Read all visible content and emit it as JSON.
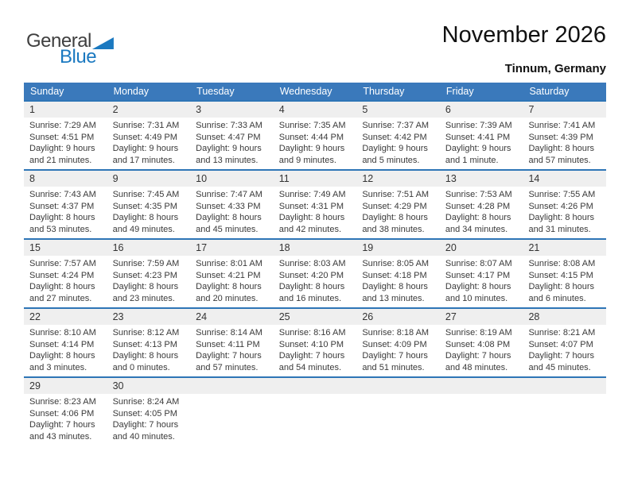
{
  "logo": {
    "part1": "General",
    "part2": "Blue"
  },
  "header": {
    "title": "November 2026",
    "subtitle": "Tinnum, Germany"
  },
  "colors": {
    "header_bg": "#3A79BB",
    "week_border": "#2E75B6",
    "day_strip_bg": "#EFEFEF",
    "header_text": "#FFFFFF",
    "logo_blue": "#1B79C0",
    "body_text": "#3A3A3A",
    "title_text": "#111111"
  },
  "calendar": {
    "weekday_headers": [
      "Sunday",
      "Monday",
      "Tuesday",
      "Wednesday",
      "Thursday",
      "Friday",
      "Saturday"
    ],
    "weeks": [
      [
        {
          "day": "1",
          "sunrise": "Sunrise: 7:29 AM",
          "sunset": "Sunset: 4:51 PM",
          "daylight": [
            "Daylight: 9 hours",
            "and 21 minutes."
          ]
        },
        {
          "day": "2",
          "sunrise": "Sunrise: 7:31 AM",
          "sunset": "Sunset: 4:49 PM",
          "daylight": [
            "Daylight: 9 hours",
            "and 17 minutes."
          ]
        },
        {
          "day": "3",
          "sunrise": "Sunrise: 7:33 AM",
          "sunset": "Sunset: 4:47 PM",
          "daylight": [
            "Daylight: 9 hours",
            "and 13 minutes."
          ]
        },
        {
          "day": "4",
          "sunrise": "Sunrise: 7:35 AM",
          "sunset": "Sunset: 4:44 PM",
          "daylight": [
            "Daylight: 9 hours",
            "and 9 minutes."
          ]
        },
        {
          "day": "5",
          "sunrise": "Sunrise: 7:37 AM",
          "sunset": "Sunset: 4:42 PM",
          "daylight": [
            "Daylight: 9 hours",
            "and 5 minutes."
          ]
        },
        {
          "day": "6",
          "sunrise": "Sunrise: 7:39 AM",
          "sunset": "Sunset: 4:41 PM",
          "daylight": [
            "Daylight: 9 hours",
            "and 1 minute."
          ]
        },
        {
          "day": "7",
          "sunrise": "Sunrise: 7:41 AM",
          "sunset": "Sunset: 4:39 PM",
          "daylight": [
            "Daylight: 8 hours",
            "and 57 minutes."
          ]
        }
      ],
      [
        {
          "day": "8",
          "sunrise": "Sunrise: 7:43 AM",
          "sunset": "Sunset: 4:37 PM",
          "daylight": [
            "Daylight: 8 hours",
            "and 53 minutes."
          ]
        },
        {
          "day": "9",
          "sunrise": "Sunrise: 7:45 AM",
          "sunset": "Sunset: 4:35 PM",
          "daylight": [
            "Daylight: 8 hours",
            "and 49 minutes."
          ]
        },
        {
          "day": "10",
          "sunrise": "Sunrise: 7:47 AM",
          "sunset": "Sunset: 4:33 PM",
          "daylight": [
            "Daylight: 8 hours",
            "and 45 minutes."
          ]
        },
        {
          "day": "11",
          "sunrise": "Sunrise: 7:49 AM",
          "sunset": "Sunset: 4:31 PM",
          "daylight": [
            "Daylight: 8 hours",
            "and 42 minutes."
          ]
        },
        {
          "day": "12",
          "sunrise": "Sunrise: 7:51 AM",
          "sunset": "Sunset: 4:29 PM",
          "daylight": [
            "Daylight: 8 hours",
            "and 38 minutes."
          ]
        },
        {
          "day": "13",
          "sunrise": "Sunrise: 7:53 AM",
          "sunset": "Sunset: 4:28 PM",
          "daylight": [
            "Daylight: 8 hours",
            "and 34 minutes."
          ]
        },
        {
          "day": "14",
          "sunrise": "Sunrise: 7:55 AM",
          "sunset": "Sunset: 4:26 PM",
          "daylight": [
            "Daylight: 8 hours",
            "and 31 minutes."
          ]
        }
      ],
      [
        {
          "day": "15",
          "sunrise": "Sunrise: 7:57 AM",
          "sunset": "Sunset: 4:24 PM",
          "daylight": [
            "Daylight: 8 hours",
            "and 27 minutes."
          ]
        },
        {
          "day": "16",
          "sunrise": "Sunrise: 7:59 AM",
          "sunset": "Sunset: 4:23 PM",
          "daylight": [
            "Daylight: 8 hours",
            "and 23 minutes."
          ]
        },
        {
          "day": "17",
          "sunrise": "Sunrise: 8:01 AM",
          "sunset": "Sunset: 4:21 PM",
          "daylight": [
            "Daylight: 8 hours",
            "and 20 minutes."
          ]
        },
        {
          "day": "18",
          "sunrise": "Sunrise: 8:03 AM",
          "sunset": "Sunset: 4:20 PM",
          "daylight": [
            "Daylight: 8 hours",
            "and 16 minutes."
          ]
        },
        {
          "day": "19",
          "sunrise": "Sunrise: 8:05 AM",
          "sunset": "Sunset: 4:18 PM",
          "daylight": [
            "Daylight: 8 hours",
            "and 13 minutes."
          ]
        },
        {
          "day": "20",
          "sunrise": "Sunrise: 8:07 AM",
          "sunset": "Sunset: 4:17 PM",
          "daylight": [
            "Daylight: 8 hours",
            "and 10 minutes."
          ]
        },
        {
          "day": "21",
          "sunrise": "Sunrise: 8:08 AM",
          "sunset": "Sunset: 4:15 PM",
          "daylight": [
            "Daylight: 8 hours",
            "and 6 minutes."
          ]
        }
      ],
      [
        {
          "day": "22",
          "sunrise": "Sunrise: 8:10 AM",
          "sunset": "Sunset: 4:14 PM",
          "daylight": [
            "Daylight: 8 hours",
            "and 3 minutes."
          ]
        },
        {
          "day": "23",
          "sunrise": "Sunrise: 8:12 AM",
          "sunset": "Sunset: 4:13 PM",
          "daylight": [
            "Daylight: 8 hours",
            "and 0 minutes."
          ]
        },
        {
          "day": "24",
          "sunrise": "Sunrise: 8:14 AM",
          "sunset": "Sunset: 4:11 PM",
          "daylight": [
            "Daylight: 7 hours",
            "and 57 minutes."
          ]
        },
        {
          "day": "25",
          "sunrise": "Sunrise: 8:16 AM",
          "sunset": "Sunset: 4:10 PM",
          "daylight": [
            "Daylight: 7 hours",
            "and 54 minutes."
          ]
        },
        {
          "day": "26",
          "sunrise": "Sunrise: 8:18 AM",
          "sunset": "Sunset: 4:09 PM",
          "daylight": [
            "Daylight: 7 hours",
            "and 51 minutes."
          ]
        },
        {
          "day": "27",
          "sunrise": "Sunrise: 8:19 AM",
          "sunset": "Sunset: 4:08 PM",
          "daylight": [
            "Daylight: 7 hours",
            "and 48 minutes."
          ]
        },
        {
          "day": "28",
          "sunrise": "Sunrise: 8:21 AM",
          "sunset": "Sunset: 4:07 PM",
          "daylight": [
            "Daylight: 7 hours",
            "and 45 minutes."
          ]
        }
      ],
      [
        {
          "day": "29",
          "sunrise": "Sunrise: 8:23 AM",
          "sunset": "Sunset: 4:06 PM",
          "daylight": [
            "Daylight: 7 hours",
            "and 43 minutes."
          ]
        },
        {
          "day": "30",
          "sunrise": "Sunrise: 8:24 AM",
          "sunset": "Sunset: 4:05 PM",
          "daylight": [
            "Daylight: 7 hours",
            "and 40 minutes."
          ]
        },
        null,
        null,
        null,
        null,
        null
      ]
    ]
  }
}
